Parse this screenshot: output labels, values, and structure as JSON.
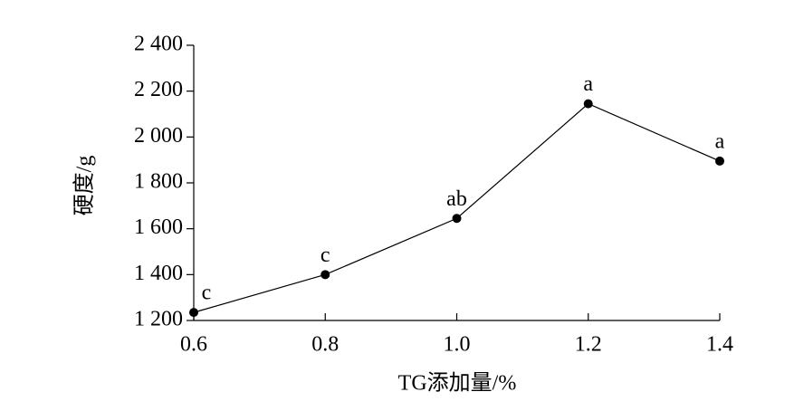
{
  "chart_data": {
    "type": "line",
    "x_label": "TG添加量/%",
    "y_label": "硬度/g",
    "x": [
      0.6,
      0.8,
      1.0,
      1.2,
      1.4
    ],
    "series": [
      {
        "name": "硬度",
        "color": "#000000",
        "values": [
          1235,
          1400,
          1645,
          2145,
          1895
        ]
      }
    ],
    "point_labels": [
      "c",
      "c",
      "ab",
      "a",
      "a"
    ],
    "xlim": [
      0.6,
      1.4
    ],
    "xticks": [
      0.6,
      0.8,
      {
        "value": 1.0,
        "label": "1.0"
      },
      1.2,
      1.4
    ],
    "ylim": [
      1200,
      2400
    ],
    "yticks": [
      {
        "value": 1200,
        "label": "1 200"
      },
      {
        "value": 1400,
        "label": "1 400"
      },
      {
        "value": 1600,
        "label": "1 600"
      },
      {
        "value": 1800,
        "label": "1 800"
      },
      {
        "value": 2000,
        "label": "2 000"
      },
      {
        "value": 2200,
        "label": "2 200"
      },
      {
        "value": 2400,
        "label": "2 400"
      }
    ],
    "grid": false
  }
}
